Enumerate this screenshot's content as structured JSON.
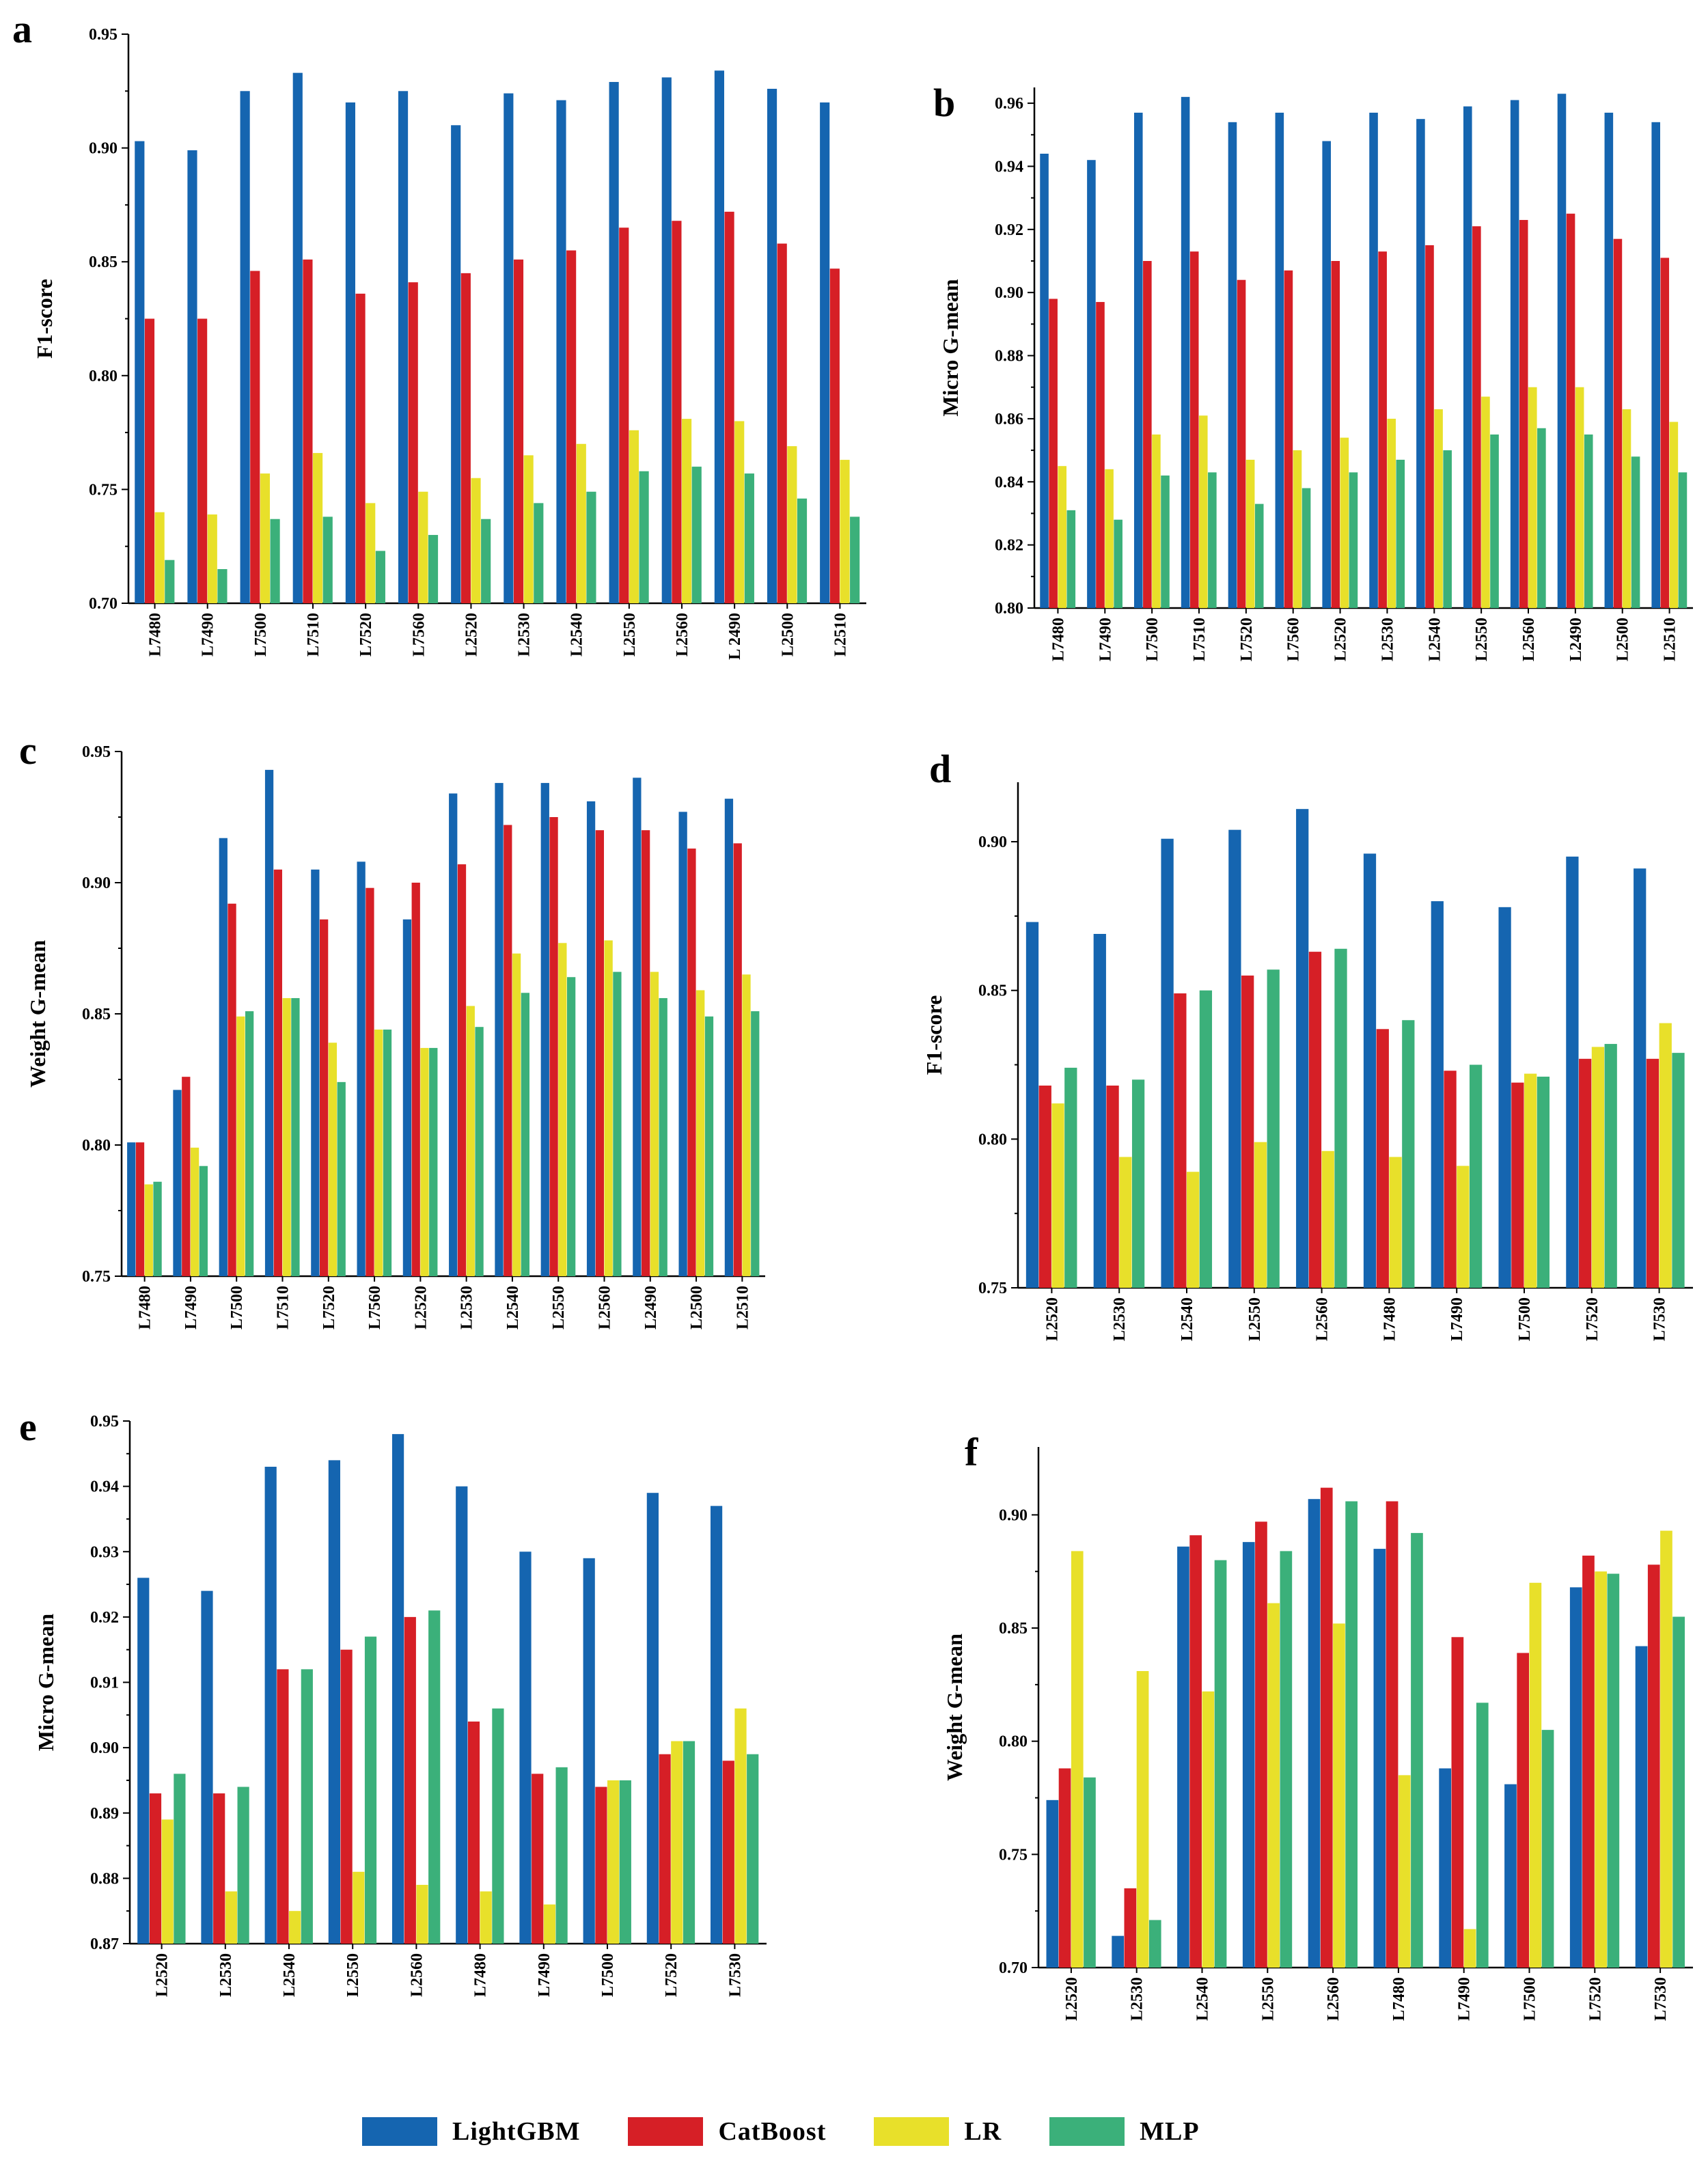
{
  "series_colors": {
    "LightGBM": "#1565b0",
    "CatBoost": "#d61f26",
    "LR": "#e8e02a",
    "MLP": "#3bb07a"
  },
  "legend": [
    {
      "name": "LightGBM",
      "color": "#1565b0"
    },
    {
      "name": "CatBoost",
      "color": "#d61f26"
    },
    {
      "name": "LR",
      "color": "#e8e02a"
    },
    {
      "name": "MLP",
      "color": "#3bb07a"
    }
  ],
  "chart_data": [
    {
      "panel": "a",
      "type": "bar",
      "ylabel": "F1-score",
      "ylim": [
        0.7,
        0.95
      ],
      "yticks": [
        "0.70",
        "0.75",
        "0.80",
        "0.85",
        "0.90",
        "0.95"
      ],
      "categories": [
        "L7480",
        "L7490",
        "L7500",
        "L7510",
        "L7520",
        "L7560",
        "L2520",
        "L2530",
        "L2540",
        "L2550",
        "L2560",
        "L 2490",
        "L2500",
        "L2510"
      ],
      "series": [
        {
          "name": "LightGBM",
          "values": [
            0.903,
            0.899,
            0.925,
            0.933,
            0.92,
            0.925,
            0.91,
            0.924,
            0.921,
            0.929,
            0.931,
            0.934,
            0.926,
            0.92
          ]
        },
        {
          "name": "CatBoost",
          "values": [
            0.825,
            0.825,
            0.846,
            0.851,
            0.836,
            0.841,
            0.845,
            0.851,
            0.855,
            0.865,
            0.868,
            0.872,
            0.858,
            0.847
          ]
        },
        {
          "name": "LR",
          "values": [
            0.74,
            0.739,
            0.757,
            0.766,
            0.744,
            0.749,
            0.755,
            0.765,
            0.77,
            0.776,
            0.781,
            0.78,
            0.769,
            0.763
          ]
        },
        {
          "name": "MLP",
          "values": [
            0.719,
            0.715,
            0.737,
            0.738,
            0.723,
            0.73,
            0.737,
            0.744,
            0.749,
            0.758,
            0.76,
            0.757,
            0.746,
            0.738
          ]
        }
      ]
    },
    {
      "panel": "b",
      "type": "bar",
      "ylabel": "Micro G-mean",
      "ylim": [
        0.8,
        0.965
      ],
      "yticks": [
        "0.80",
        "0.82",
        "0.84",
        "0.86",
        "0.88",
        "0.90",
        "0.92",
        "0.94",
        "0.96"
      ],
      "categories": [
        "L7480",
        "L7490",
        "L7500",
        "L7510",
        "L7520",
        "L7560",
        "L2520",
        "L2530",
        "L2540",
        "L2550",
        "L2560",
        "L2490",
        "L2500",
        "L2510"
      ],
      "series": [
        {
          "name": "LightGBM",
          "values": [
            0.944,
            0.942,
            0.957,
            0.962,
            0.954,
            0.957,
            0.948,
            0.957,
            0.955,
            0.959,
            0.961,
            0.963,
            0.957,
            0.954
          ]
        },
        {
          "name": "CatBoost",
          "values": [
            0.898,
            0.897,
            0.91,
            0.913,
            0.904,
            0.907,
            0.91,
            0.913,
            0.915,
            0.921,
            0.923,
            0.925,
            0.917,
            0.911
          ]
        },
        {
          "name": "LR",
          "values": [
            0.845,
            0.844,
            0.855,
            0.861,
            0.847,
            0.85,
            0.854,
            0.86,
            0.863,
            0.867,
            0.87,
            0.87,
            0.863,
            0.859
          ]
        },
        {
          "name": "MLP",
          "values": [
            0.831,
            0.828,
            0.842,
            0.843,
            0.833,
            0.838,
            0.843,
            0.847,
            0.85,
            0.855,
            0.857,
            0.855,
            0.848,
            0.843
          ]
        }
      ]
    },
    {
      "panel": "c",
      "type": "bar",
      "ylabel": "Weight G-mean",
      "ylim": [
        0.75,
        0.95
      ],
      "yticks": [
        "0.75",
        "0.80",
        "0.85",
        "0.90",
        "0.95"
      ],
      "categories": [
        "L7480",
        "L7490",
        "L7500",
        "L7510",
        "L7520",
        "L7560",
        "L2520",
        "L2530",
        "L2540",
        "L2550",
        "L2560",
        "L2490",
        "L2500",
        "L2510"
      ],
      "series": [
        {
          "name": "LightGBM",
          "values": [
            0.801,
            0.821,
            0.917,
            0.943,
            0.905,
            0.908,
            0.886,
            0.934,
            0.938,
            0.938,
            0.931,
            0.94,
            0.927,
            0.932
          ]
        },
        {
          "name": "CatBoost",
          "values": [
            0.801,
            0.826,
            0.892,
            0.905,
            0.886,
            0.898,
            0.9,
            0.907,
            0.922,
            0.925,
            0.92,
            0.92,
            0.913,
            0.915
          ]
        },
        {
          "name": "LR",
          "values": [
            0.785,
            0.799,
            0.849,
            0.856,
            0.839,
            0.844,
            0.837,
            0.853,
            0.873,
            0.877,
            0.878,
            0.866,
            0.859,
            0.865
          ]
        },
        {
          "name": "MLP",
          "values": [
            0.786,
            0.792,
            0.851,
            0.856,
            0.824,
            0.844,
            0.837,
            0.845,
            0.858,
            0.864,
            0.866,
            0.856,
            0.849,
            0.851
          ]
        }
      ]
    },
    {
      "panel": "d",
      "type": "bar",
      "ylabel": "F1-score",
      "ylim": [
        0.75,
        0.92
      ],
      "yticks": [
        "0.75",
        "0.80",
        "0.85",
        "0.90"
      ],
      "categories": [
        "L2520",
        "L2530",
        "L2540",
        "L2550",
        "L2560",
        "L7480",
        "L7490",
        "L7500",
        "L7520",
        "L7530"
      ],
      "series": [
        {
          "name": "LightGBM",
          "values": [
            0.873,
            0.869,
            0.901,
            0.904,
            0.911,
            0.896,
            0.88,
            0.878,
            0.895,
            0.891
          ]
        },
        {
          "name": "CatBoost",
          "values": [
            0.818,
            0.818,
            0.849,
            0.855,
            0.863,
            0.837,
            0.823,
            0.819,
            0.827,
            0.827
          ]
        },
        {
          "name": "LR",
          "values": [
            0.812,
            0.794,
            0.789,
            0.799,
            0.796,
            0.794,
            0.791,
            0.822,
            0.831,
            0.839
          ]
        },
        {
          "name": "MLP",
          "values": [
            0.824,
            0.82,
            0.85,
            0.857,
            0.864,
            0.84,
            0.825,
            0.821,
            0.832,
            0.829
          ]
        }
      ]
    },
    {
      "panel": "e",
      "type": "bar",
      "ylabel": "Micro G-mean",
      "ylim": [
        0.87,
        0.95
      ],
      "yticks": [
        "0.87",
        "0.88",
        "0.89",
        "0.90",
        "0.91",
        "0.92",
        "0.93",
        "0.94",
        "0.95"
      ],
      "categories": [
        "L2520",
        "L2530",
        "L2540",
        "L2550",
        "L2560",
        "L7480",
        "L7490",
        "L7500",
        "L7520",
        "L7530"
      ],
      "series": [
        {
          "name": "LightGBM",
          "values": [
            0.926,
            0.924,
            0.943,
            0.944,
            0.948,
            0.94,
            0.93,
            0.929,
            0.939,
            0.937
          ]
        },
        {
          "name": "CatBoost",
          "values": [
            0.893,
            0.893,
            0.912,
            0.915,
            0.92,
            0.904,
            0.896,
            0.894,
            0.899,
            0.898
          ]
        },
        {
          "name": "LR",
          "values": [
            0.889,
            0.878,
            0.875,
            0.881,
            0.879,
            0.878,
            0.876,
            0.895,
            0.901,
            0.906
          ]
        },
        {
          "name": "MLP",
          "values": [
            0.896,
            0.894,
            0.912,
            0.917,
            0.921,
            0.906,
            0.897,
            0.895,
            0.901,
            0.899
          ]
        }
      ]
    },
    {
      "panel": "f",
      "type": "bar",
      "ylabel": "Weight G-mean",
      "ylim": [
        0.7,
        0.93
      ],
      "yticks": [
        "0.70",
        "0.75",
        "0.80",
        "0.85",
        "0.90"
      ],
      "categories": [
        "L2520",
        "L2530",
        "L2540",
        "L2550",
        "L2560",
        "L7480",
        "L7490",
        "L7500",
        "L7520",
        "L7530"
      ],
      "series": [
        {
          "name": "LightGBM",
          "values": [
            0.774,
            0.714,
            0.886,
            0.888,
            0.907,
            0.885,
            0.788,
            0.781,
            0.868,
            0.842
          ]
        },
        {
          "name": "CatBoost",
          "values": [
            0.788,
            0.735,
            0.891,
            0.897,
            0.912,
            0.906,
            0.846,
            0.839,
            0.882,
            0.878
          ]
        },
        {
          "name": "LR",
          "values": [
            0.884,
            0.831,
            0.822,
            0.861,
            0.852,
            0.785,
            0.717,
            0.87,
            0.875,
            0.893
          ]
        },
        {
          "name": "MLP",
          "values": [
            0.784,
            0.721,
            0.88,
            0.884,
            0.906,
            0.892,
            0.817,
            0.805,
            0.874,
            0.855
          ]
        }
      ]
    }
  ]
}
